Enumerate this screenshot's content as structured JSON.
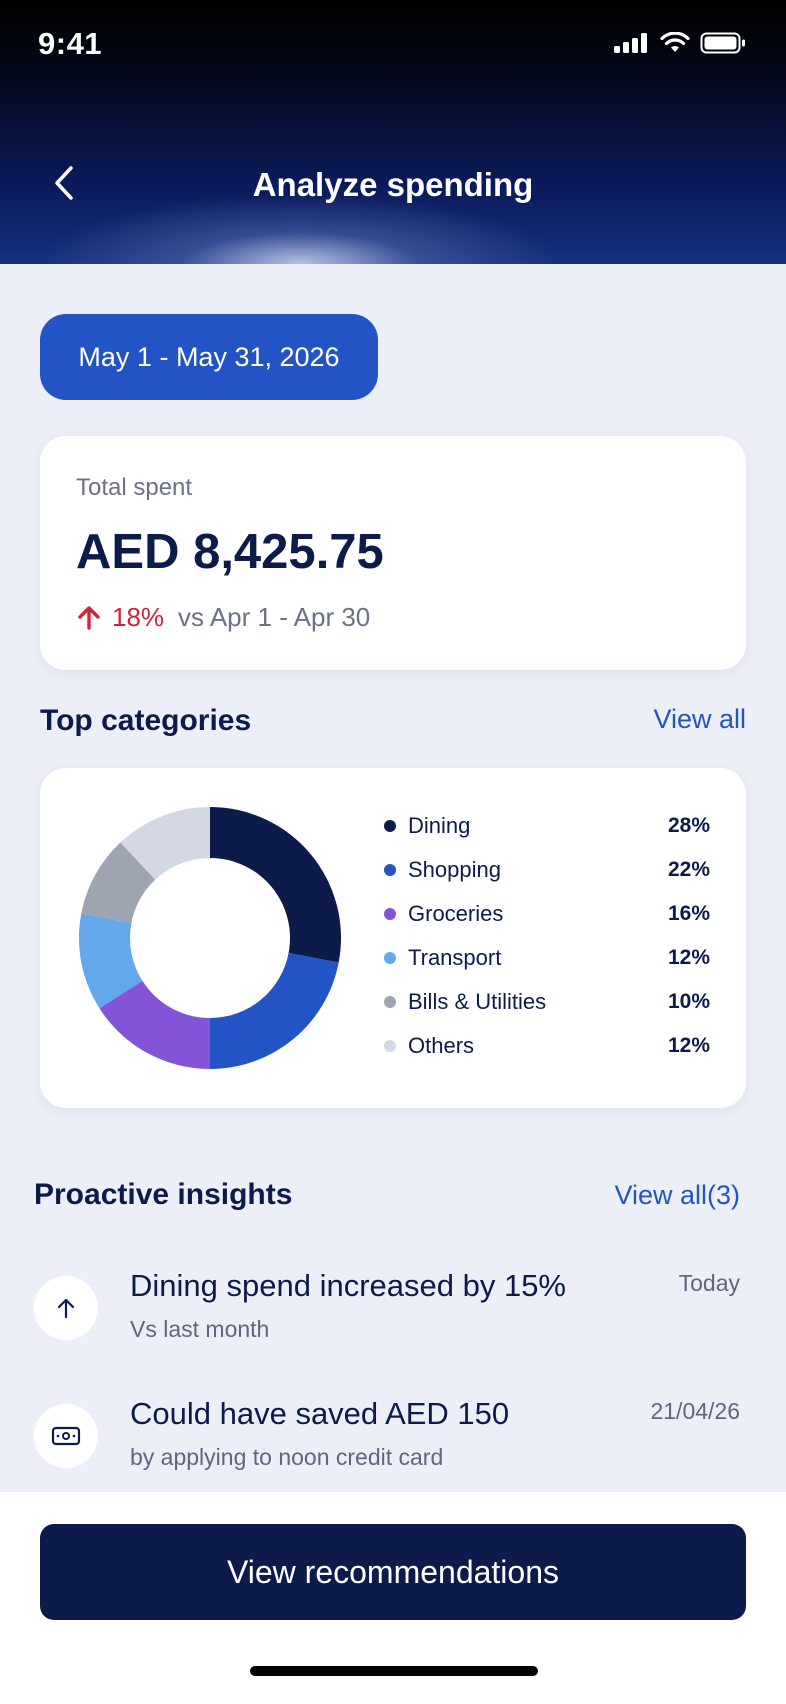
{
  "status_bar": {
    "time": "9:41",
    "icons": [
      "signal-icon",
      "wifi-icon",
      "battery-icon"
    ]
  },
  "header": {
    "title": "Analyze spending",
    "back_icon": "chevron-left-icon"
  },
  "date_range": {
    "label": "May 1 - May 31, 2026"
  },
  "total": {
    "label": "Total spent",
    "amount": "AED 8,425.75",
    "change_direction": "up",
    "change_pct": "18%",
    "comparison": "vs Apr 1 - Apr 30",
    "change_color": "#d0243a"
  },
  "categories": {
    "title": "Top categories",
    "view_all": "View all",
    "items": [
      {
        "label": "Dining",
        "pct": "28%",
        "value": 28,
        "color": "#0d1b4b"
      },
      {
        "label": "Shopping",
        "pct": "22%",
        "value": 22,
        "color": "#2354c6"
      },
      {
        "label": "Groceries",
        "pct": "16%",
        "value": 16,
        "color": "#8454d8"
      },
      {
        "label": "Transport",
        "pct": "12%",
        "value": 12,
        "color": "#62a8ea"
      },
      {
        "label": "Bills & Utilities",
        "pct": "10%",
        "value": 10,
        "color": "#9ea4b2"
      },
      {
        "label": "Others",
        "pct": "12%",
        "value": 12,
        "color": "#d3d8e4"
      }
    ]
  },
  "insights": {
    "title": "Proactive insights",
    "view_all": "View all(3)",
    "items": [
      {
        "title": "Dining spend increased by 15%",
        "subtitle": "Vs last month",
        "date": "Today",
        "icon": "arrow-up-icon"
      },
      {
        "title": "Could have saved AED 150",
        "subtitle": "by applying to noon credit card",
        "date": "21/04/26",
        "icon": "cash-icon"
      }
    ]
  },
  "cta": {
    "label": "View recommendations"
  },
  "colors": {
    "primary": "#2354c6",
    "navy": "#0d1b4b",
    "background": "#eceff7"
  }
}
